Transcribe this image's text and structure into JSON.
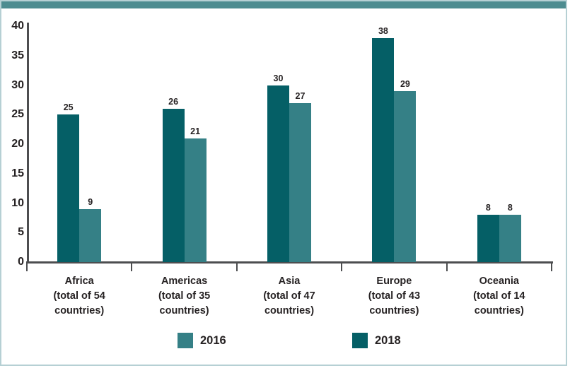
{
  "frame": {
    "top_bar_color": "#4d8c90",
    "border_color": "#b6d0d4",
    "background": "#ffffff",
    "axis_color": "#4d4e50",
    "text_color": "#262223"
  },
  "chart_data": {
    "type": "bar",
    "title": "",
    "xlabel": "",
    "ylabel": "",
    "grid": false,
    "categories": [
      {
        "name": "Africa",
        "label_lines": [
          "Africa",
          "(total of 54",
          "countries)"
        ]
      },
      {
        "name": "Americas",
        "label_lines": [
          "Americas",
          "(total of 35",
          "countries)"
        ]
      },
      {
        "name": "Asia",
        "label_lines": [
          "Asia",
          "(total of 47",
          "countries)"
        ]
      },
      {
        "name": "Europe",
        "label_lines": [
          "Europe",
          "(total of 43",
          "countries)"
        ]
      },
      {
        "name": "Oceania",
        "label_lines": [
          "Oceania",
          "(total of 14",
          "countries)"
        ]
      }
    ],
    "series": [
      {
        "name": "2018",
        "color": "#055f66",
        "values": [
          25,
          26,
          30,
          38,
          8
        ]
      },
      {
        "name": "2016",
        "color": "#358086",
        "values": [
          9,
          21,
          27,
          29,
          8
        ]
      }
    ],
    "bar_order_note": "left bar of each pair is 2018 (dark), right bar is 2016 (light)",
    "y_axis": {
      "min": 0,
      "max": 40,
      "step": 5,
      "ticks": [
        0,
        5,
        10,
        15,
        20,
        25,
        30,
        35,
        40
      ]
    },
    "legend": [
      {
        "label": "2016",
        "color": "#358086"
      },
      {
        "label": "2018",
        "color": "#055f66"
      }
    ],
    "legend_position": "bottom"
  }
}
